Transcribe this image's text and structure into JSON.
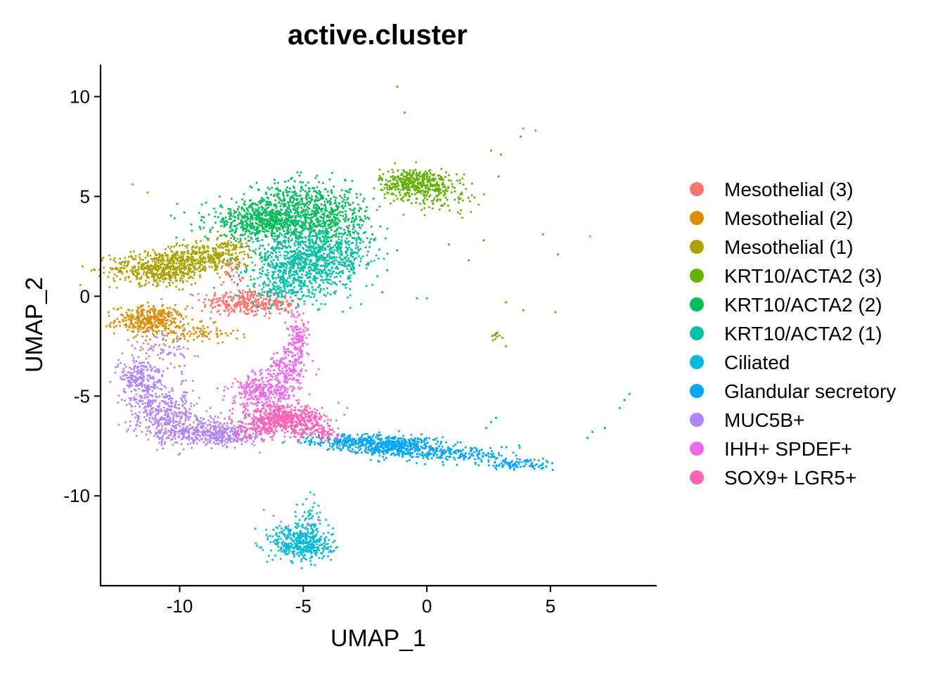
{
  "chart_data": {
    "type": "scatter",
    "title": "active.cluster",
    "xlabel": "UMAP_1",
    "ylabel": "UMAP_2",
    "xlim": [
      -13.2,
      9.3
    ],
    "ylim": [
      -14.5,
      11.6
    ],
    "xticks": [
      -10,
      -5,
      0,
      5
    ],
    "xtick_labels": [
      "-10",
      "-5",
      "0",
      "5"
    ],
    "yticks": [
      10,
      5,
      0,
      -5,
      -10
    ],
    "ytick_labels": [
      "10",
      "5",
      "0",
      "-5",
      "-10"
    ],
    "legend_position": "right",
    "series": [
      {
        "name": "Mesothelial (3)",
        "color": "#F8766D",
        "clusters": [
          [
            -7.5,
            -0.3,
            0.8,
            0.35,
            260
          ],
          [
            -6.0,
            -0.4,
            0.5,
            0.3,
            80
          ],
          [
            -7.9,
            1.2,
            0.25,
            0.35,
            40
          ]
        ],
        "points": [
          [
            -11.9,
            5.6
          ],
          [
            3.9,
            8.4
          ],
          [
            4.4,
            8.3
          ],
          [
            6.6,
            3.0
          ],
          [
            -1.4,
            5.6
          ],
          [
            -5.8,
            -6.5
          ],
          [
            -4.8,
            -6.6
          ]
        ]
      },
      {
        "name": "Mesothelial (2)",
        "color": "#DB8E00",
        "clusters": [
          [
            -11.2,
            -1.2,
            0.7,
            0.35,
            360
          ],
          [
            -9.4,
            -1.9,
            0.9,
            0.25,
            90
          ]
        ],
        "points": [
          [
            -10.0,
            -3.5
          ],
          [
            -9.3,
            -6.2
          ],
          [
            -10.5,
            -6.0
          ]
        ]
      },
      {
        "name": "Mesothelial (1)",
        "color": "#AEA200",
        "clusters": [
          [
            -10.8,
            1.4,
            1.0,
            0.4,
            520
          ],
          [
            -9.0,
            2.0,
            0.9,
            0.35,
            320
          ],
          [
            -8.0,
            2.5,
            0.4,
            0.3,
            60
          ]
        ],
        "points": [
          [
            -11.3,
            5.2
          ],
          [
            -7.3,
            1.4
          ]
        ]
      },
      {
        "name": "KRT10/ACTA2 (3)",
        "color": "#64B200",
        "clusters": [
          [
            -0.5,
            5.7,
            0.7,
            0.35,
            380
          ],
          [
            0.4,
            5.1,
            0.9,
            0.45,
            120
          ],
          [
            2.8,
            -2.0,
            0.1,
            0.1,
            12
          ]
        ],
        "points": [
          [
            -1.2,
            10.5
          ],
          [
            -0.9,
            9.2
          ],
          [
            2.6,
            7.3
          ],
          [
            3.8,
            8.0
          ],
          [
            3.0,
            7.1
          ],
          [
            2.9,
            6.0
          ],
          [
            3.2,
            -2.5
          ],
          [
            5.3,
            2.1
          ],
          [
            4.7,
            3.1
          ],
          [
            5.2,
            -0.8
          ],
          [
            3.9,
            -0.7
          ],
          [
            3.2,
            -0.3
          ],
          [
            0.0,
            -0.1
          ],
          [
            2.3,
            2.8
          ],
          [
            1.7,
            1.8
          ],
          [
            0.9,
            2.6
          ]
        ]
      },
      {
        "name": "KRT10/ACTA2 (2)",
        "color": "#00BD5C",
        "clusters": [
          [
            -6.5,
            3.8,
            1.2,
            0.5,
            720
          ],
          [
            -4.2,
            3.8,
            1.0,
            0.8,
            520
          ],
          [
            -5.2,
            5.0,
            0.9,
            0.5,
            140
          ]
        ],
        "points": [
          [
            -1.2,
            2.3
          ],
          [
            -1.6,
            1.3
          ],
          [
            -2.2,
            3.1
          ],
          [
            -7.0,
            1.3
          ]
        ]
      },
      {
        "name": "KRT10/ACTA2 (1)",
        "color": "#00C1A7",
        "clusters": [
          [
            -5.0,
            1.6,
            1.0,
            0.8,
            820
          ],
          [
            -3.4,
            2.2,
            0.6,
            0.6,
            160
          ],
          [
            -5.8,
            0.4,
            0.6,
            0.4,
            90
          ]
        ],
        "points": [
          [
            -2.0,
            1.0
          ],
          [
            -1.8,
            0.2
          ],
          [
            -3.4,
            0.6
          ],
          [
            -0.4,
            -0.1
          ]
        ]
      },
      {
        "name": "Ciliated",
        "color": "#00BADE",
        "clusters": [
          [
            -5.0,
            -12.5,
            0.6,
            0.4,
            340
          ],
          [
            -4.7,
            -11.4,
            0.25,
            0.7,
            90
          ],
          [
            -5.6,
            -11.9,
            0.4,
            0.25,
            60
          ]
        ],
        "points": []
      },
      {
        "name": "Glandular secretory",
        "color": "#00A6FF",
        "clusters": [
          [
            -1.3,
            -7.5,
            0.9,
            0.25,
            460
          ],
          [
            -3.2,
            -7.3,
            0.9,
            0.2,
            220
          ],
          [
            1.4,
            -7.9,
            1.0,
            0.2,
            160
          ],
          [
            3.6,
            -8.4,
            0.8,
            0.15,
            100
          ]
        ],
        "points": [
          [
            8.2,
            -4.9
          ],
          [
            8.0,
            -5.2
          ],
          [
            7.8,
            -5.6
          ],
          [
            6.7,
            -6.8
          ],
          [
            6.5,
            -7.1
          ],
          [
            7.2,
            -6.6
          ],
          [
            2.8,
            -6.1
          ],
          [
            2.6,
            -6.3
          ],
          [
            2.4,
            -6.6
          ],
          [
            5.1,
            -8.7
          ],
          [
            4.7,
            -8.6
          ]
        ]
      },
      {
        "name": "MUC5B+",
        "color": "#B385FF",
        "clusters": [
          [
            -11.5,
            -4.2,
            0.5,
            0.6,
            260
          ],
          [
            -10.6,
            -5.9,
            0.7,
            0.6,
            340
          ],
          [
            -9.2,
            -6.8,
            0.9,
            0.35,
            320
          ],
          [
            -7.9,
            -6.9,
            0.6,
            0.3,
            140
          ],
          [
            -10.5,
            -2.6,
            0.6,
            0.4,
            60
          ]
        ],
        "points": [
          [
            -6.6,
            -10.7
          ],
          [
            -6.2,
            -11.0
          ],
          [
            -5.9,
            -11.3
          ],
          [
            -5.6,
            -11.5
          ]
        ]
      },
      {
        "name": "IHH+ SPDEF+",
        "color": "#EF67EB",
        "clusters": [
          [
            -6.6,
            -4.8,
            0.7,
            0.5,
            300
          ],
          [
            -5.6,
            -3.7,
            0.4,
            0.6,
            180
          ],
          [
            -5.2,
            -2.0,
            0.2,
            0.6,
            110
          ]
        ],
        "points": [
          [
            -4.8,
            -1.3
          ],
          [
            -5.3,
            -0.6
          ]
        ]
      },
      {
        "name": "SOX9+ LGR5+",
        "color": "#FF63B6",
        "clusters": [
          [
            -5.8,
            -6.2,
            0.8,
            0.35,
            560
          ],
          [
            -4.3,
            -6.8,
            0.5,
            0.25,
            90
          ],
          [
            -7.0,
            -6.8,
            0.4,
            0.25,
            60
          ]
        ],
        "points": [
          [
            -4.8,
            -11.4
          ],
          [
            -4.4,
            -11.2
          ]
        ]
      }
    ]
  }
}
